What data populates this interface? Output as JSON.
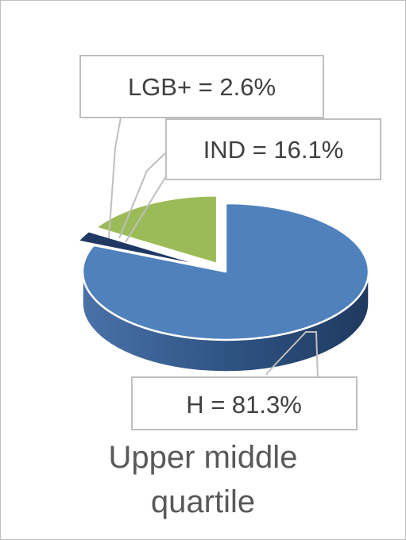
{
  "chart_data": {
    "type": "pie",
    "title": "Upper middle quartile",
    "title_lines": [
      "Upper middle",
      "quartile"
    ],
    "series": [
      {
        "slices": [
          {
            "label": "H",
            "value": 81.3,
            "text": "H = 81.3%",
            "color": "#4f81bd"
          },
          {
            "label": "LGB+",
            "value": 2.6,
            "text": "LGB+ = 2.6%",
            "color": "#1f3864"
          },
          {
            "label": "IND",
            "value": 16.1,
            "text": "IND = 16.1%",
            "color": "#9bbb59"
          }
        ]
      }
    ],
    "style": "3d-exploded",
    "legend": "none",
    "data_labels": "callouts"
  }
}
